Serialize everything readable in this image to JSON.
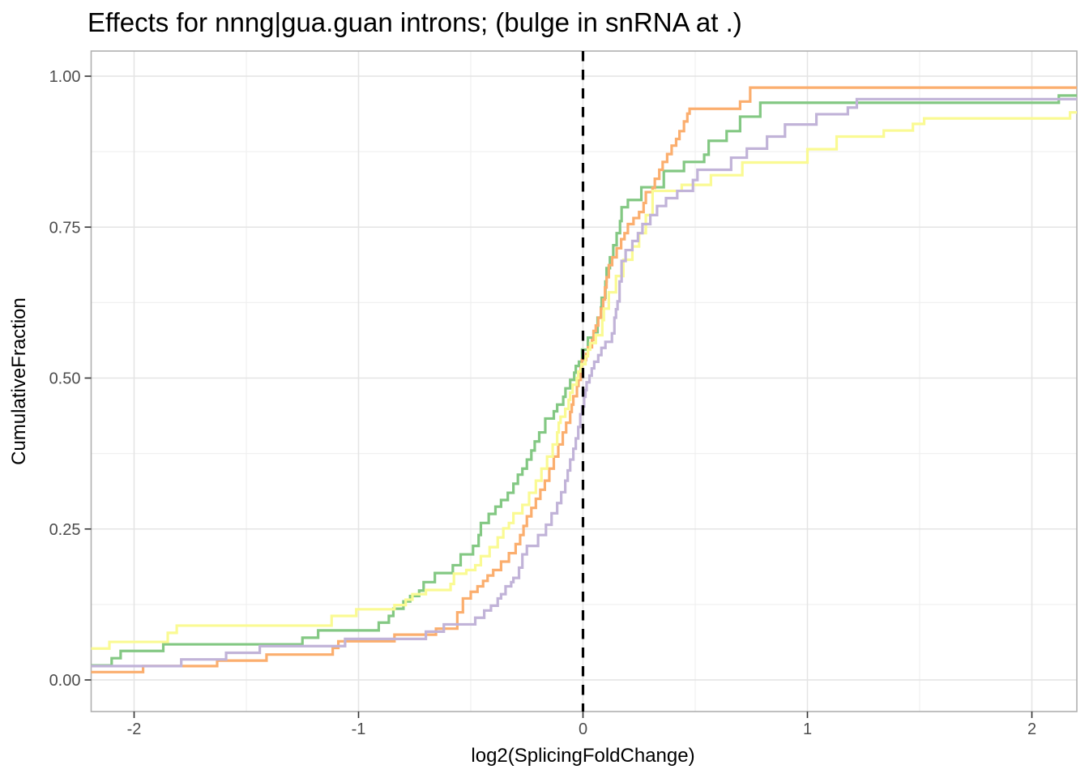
{
  "chart_data": {
    "type": "line",
    "subtype": "ecdf-step",
    "title": "Effects for nnng|gua.guan introns; (bulge in snRNA at .)",
    "xlabel": "log2(SplicingFoldChange)",
    "ylabel": "CumulativeFraction",
    "xlim": [
      -2.18,
      2.2
    ],
    "ylim": [
      -0.051,
      1.04
    ],
    "grid": true,
    "legend_position": "none",
    "x_ticks": {
      "values": [
        -2,
        -1,
        0,
        1,
        2
      ],
      "labels": [
        "-2",
        "-1",
        "0",
        "1",
        "2"
      ]
    },
    "y_ticks": {
      "values": [
        0,
        0.25,
        0.5,
        0.75,
        1
      ],
      "labels": [
        "0.00",
        "0.25",
        "0.50",
        "0.75",
        "1.00"
      ]
    },
    "x_minor_ticks": [
      -1.5,
      -0.5,
      0.5,
      1.5
    ],
    "y_minor_ticks": [
      0.125,
      0.375,
      0.625,
      0.875
    ],
    "vline": {
      "x": 0,
      "style": "dashed",
      "color": "#000000"
    },
    "colors": {
      "panel_background": "#ffffff",
      "panel_border": "#b0b0b0",
      "grid_major": "#e4e4e4",
      "grid_minor": "#f0f0f0",
      "tick_mark": "#333333",
      "tick_label": "#4d4d4d",
      "title": "#000000"
    },
    "series": [
      {
        "name": "green",
        "color": "#83c883",
        "points": [
          [
            -2.18,
            0.024
          ],
          [
            -2.1,
            0.036
          ],
          [
            -2.06,
            0.048
          ],
          [
            -1.87,
            0.059
          ],
          [
            -1.25,
            0.07
          ],
          [
            -1.18,
            0.082
          ],
          [
            -0.91,
            0.095
          ],
          [
            -0.865,
            0.106
          ],
          [
            -0.845,
            0.118
          ],
          [
            -0.8,
            0.13
          ],
          [
            -0.77,
            0.139
          ],
          [
            -0.73,
            0.148
          ],
          [
            -0.71,
            0.162
          ],
          [
            -0.66,
            0.177
          ],
          [
            -0.58,
            0.19
          ],
          [
            -0.545,
            0.208
          ],
          [
            -0.49,
            0.222
          ],
          [
            -0.465,
            0.24
          ],
          [
            -0.455,
            0.26
          ],
          [
            -0.42,
            0.275
          ],
          [
            -0.39,
            0.287
          ],
          [
            -0.365,
            0.298
          ],
          [
            -0.335,
            0.31
          ],
          [
            -0.31,
            0.325
          ],
          [
            -0.29,
            0.34
          ],
          [
            -0.27,
            0.35
          ],
          [
            -0.25,
            0.365
          ],
          [
            -0.23,
            0.38
          ],
          [
            -0.215,
            0.395
          ],
          [
            -0.195,
            0.41
          ],
          [
            -0.168,
            0.433
          ],
          [
            -0.13,
            0.445
          ],
          [
            -0.115,
            0.456
          ],
          [
            -0.088,
            0.469
          ],
          [
            -0.078,
            0.483
          ],
          [
            -0.057,
            0.497
          ],
          [
            -0.039,
            0.509
          ],
          [
            -0.032,
            0.52
          ],
          [
            -0.018,
            0.527
          ],
          [
            -0.004,
            0.547
          ],
          [
            0.022,
            0.567
          ],
          [
            0.047,
            0.576
          ],
          [
            0.065,
            0.6
          ],
          [
            0.08,
            0.617
          ],
          [
            0.083,
            0.633
          ],
          [
            0.1,
            0.66
          ],
          [
            0.105,
            0.682
          ],
          [
            0.12,
            0.7
          ],
          [
            0.135,
            0.72
          ],
          [
            0.15,
            0.74
          ],
          [
            0.165,
            0.76
          ],
          [
            0.172,
            0.783
          ],
          [
            0.2,
            0.795
          ],
          [
            0.26,
            0.816
          ],
          [
            0.36,
            0.843
          ],
          [
            0.45,
            0.858
          ],
          [
            0.54,
            0.87
          ],
          [
            0.56,
            0.893
          ],
          [
            0.64,
            0.909
          ],
          [
            0.7,
            0.933
          ],
          [
            0.79,
            0.956
          ],
          [
            2.12,
            0.968
          ]
        ]
      },
      {
        "name": "orange",
        "color": "#fbae6e",
        "points": [
          [
            -2.18,
            0.013
          ],
          [
            -1.96,
            0.023
          ],
          [
            -1.63,
            0.032
          ],
          [
            -1.41,
            0.042
          ],
          [
            -1.115,
            0.053
          ],
          [
            -1.09,
            0.064
          ],
          [
            -0.84,
            0.075
          ],
          [
            -0.655,
            0.085
          ],
          [
            -0.56,
            0.112
          ],
          [
            -0.535,
            0.135
          ],
          [
            -0.5,
            0.146
          ],
          [
            -0.47,
            0.155
          ],
          [
            -0.445,
            0.164
          ],
          [
            -0.425,
            0.173
          ],
          [
            -0.4,
            0.182
          ],
          [
            -0.365,
            0.196
          ],
          [
            -0.33,
            0.21
          ],
          [
            -0.3,
            0.225
          ],
          [
            -0.28,
            0.24
          ],
          [
            -0.265,
            0.255
          ],
          [
            -0.25,
            0.271
          ],
          [
            -0.23,
            0.285
          ],
          [
            -0.21,
            0.3
          ],
          [
            -0.19,
            0.315
          ],
          [
            -0.17,
            0.33
          ],
          [
            -0.15,
            0.35
          ],
          [
            -0.13,
            0.37
          ],
          [
            -0.11,
            0.39
          ],
          [
            -0.09,
            0.41
          ],
          [
            -0.075,
            0.426
          ],
          [
            -0.057,
            0.444
          ],
          [
            -0.05,
            0.456
          ],
          [
            -0.043,
            0.47
          ],
          [
            -0.027,
            0.487
          ],
          [
            -0.02,
            0.497
          ],
          [
            -0.01,
            0.517
          ],
          [
            -0.005,
            0.53
          ],
          [
            0.014,
            0.54
          ],
          [
            0.022,
            0.551
          ],
          [
            0.04,
            0.563
          ],
          [
            0.047,
            0.578
          ],
          [
            0.057,
            0.587
          ],
          [
            0.068,
            0.6
          ],
          [
            0.08,
            0.615
          ],
          [
            0.09,
            0.63
          ],
          [
            0.098,
            0.65
          ],
          [
            0.105,
            0.667
          ],
          [
            0.115,
            0.687
          ],
          [
            0.13,
            0.7
          ],
          [
            0.15,
            0.715
          ],
          [
            0.17,
            0.73
          ],
          [
            0.185,
            0.74
          ],
          [
            0.2,
            0.755
          ],
          [
            0.225,
            0.765
          ],
          [
            0.25,
            0.775
          ],
          [
            0.27,
            0.79
          ],
          [
            0.28,
            0.808
          ],
          [
            0.31,
            0.815
          ],
          [
            0.32,
            0.83
          ],
          [
            0.34,
            0.845
          ],
          [
            0.355,
            0.858
          ],
          [
            0.375,
            0.871
          ],
          [
            0.395,
            0.885
          ],
          [
            0.415,
            0.896
          ],
          [
            0.43,
            0.909
          ],
          [
            0.45,
            0.925
          ],
          [
            0.465,
            0.938
          ],
          [
            0.475,
            0.946
          ],
          [
            0.7,
            0.958
          ],
          [
            0.745,
            0.981
          ]
        ]
      },
      {
        "name": "yellow",
        "color": "#fafa93",
        "points": [
          [
            -2.18,
            0.052
          ],
          [
            -2.11,
            0.063
          ],
          [
            -1.85,
            0.078
          ],
          [
            -1.81,
            0.09
          ],
          [
            -1.12,
            0.106
          ],
          [
            -1.01,
            0.117
          ],
          [
            -0.84,
            0.124
          ],
          [
            -0.79,
            0.133
          ],
          [
            -0.76,
            0.142
          ],
          [
            -0.7,
            0.149
          ],
          [
            -0.59,
            0.159
          ],
          [
            -0.575,
            0.176
          ],
          [
            -0.52,
            0.182
          ],
          [
            -0.48,
            0.19
          ],
          [
            -0.455,
            0.205
          ],
          [
            -0.416,
            0.22
          ],
          [
            -0.38,
            0.236
          ],
          [
            -0.355,
            0.251
          ],
          [
            -0.33,
            0.26
          ],
          [
            -0.31,
            0.276
          ],
          [
            -0.27,
            0.29
          ],
          [
            -0.24,
            0.31
          ],
          [
            -0.21,
            0.33
          ],
          [
            -0.185,
            0.35
          ],
          [
            -0.16,
            0.37
          ],
          [
            -0.135,
            0.39
          ],
          [
            -0.115,
            0.41
          ],
          [
            -0.108,
            0.426
          ],
          [
            -0.1,
            0.436
          ],
          [
            -0.079,
            0.449
          ],
          [
            -0.064,
            0.464
          ],
          [
            -0.057,
            0.476
          ],
          [
            -0.046,
            0.489
          ],
          [
            -0.028,
            0.5
          ],
          [
            -0.021,
            0.511
          ],
          [
            -0.007,
            0.523
          ],
          [
            0.011,
            0.536
          ],
          [
            0.022,
            0.547
          ],
          [
            0.032,
            0.558
          ],
          [
            0.057,
            0.571
          ],
          [
            0.086,
            0.596
          ],
          [
            0.093,
            0.615
          ],
          [
            0.115,
            0.642
          ],
          [
            0.147,
            0.669
          ],
          [
            0.18,
            0.696
          ],
          [
            0.22,
            0.718
          ],
          [
            0.25,
            0.74
          ],
          [
            0.28,
            0.77
          ],
          [
            0.31,
            0.81
          ],
          [
            0.44,
            0.82
          ],
          [
            0.57,
            0.836
          ],
          [
            0.71,
            0.857
          ],
          [
            1.0,
            0.879
          ],
          [
            1.13,
            0.9
          ],
          [
            1.34,
            0.91
          ],
          [
            1.47,
            0.921
          ],
          [
            1.52,
            0.93
          ],
          [
            2.17,
            0.94
          ]
        ]
      },
      {
        "name": "purple",
        "color": "#c1b3d8",
        "points": [
          [
            -2.18,
            0.023
          ],
          [
            -1.79,
            0.034
          ],
          [
            -1.59,
            0.045
          ],
          [
            -1.44,
            0.056
          ],
          [
            -1.06,
            0.068
          ],
          [
            -0.7,
            0.08
          ],
          [
            -0.62,
            0.092
          ],
          [
            -0.48,
            0.103
          ],
          [
            -0.44,
            0.115
          ],
          [
            -0.41,
            0.123
          ],
          [
            -0.38,
            0.135
          ],
          [
            -0.365,
            0.142
          ],
          [
            -0.345,
            0.155
          ],
          [
            -0.32,
            0.162
          ],
          [
            -0.31,
            0.169
          ],
          [
            -0.285,
            0.186
          ],
          [
            -0.27,
            0.208
          ],
          [
            -0.25,
            0.222
          ],
          [
            -0.2,
            0.24
          ],
          [
            -0.165,
            0.257
          ],
          [
            -0.14,
            0.276
          ],
          [
            -0.115,
            0.293
          ],
          [
            -0.097,
            0.311
          ],
          [
            -0.079,
            0.33
          ],
          [
            -0.068,
            0.347
          ],
          [
            -0.057,
            0.365
          ],
          [
            -0.043,
            0.383
          ],
          [
            -0.032,
            0.4
          ],
          [
            -0.021,
            0.419
          ],
          [
            -0.012,
            0.44
          ],
          [
            -0.004,
            0.453
          ],
          [
            0.005,
            0.469
          ],
          [
            0.011,
            0.48
          ],
          [
            0.016,
            0.493
          ],
          [
            0.029,
            0.504
          ],
          [
            0.039,
            0.516
          ],
          [
            0.05,
            0.527
          ],
          [
            0.068,
            0.538
          ],
          [
            0.082,
            0.55
          ],
          [
            0.1,
            0.56
          ],
          [
            0.129,
            0.574
          ],
          [
            0.14,
            0.6
          ],
          [
            0.147,
            0.614
          ],
          [
            0.154,
            0.627
          ],
          [
            0.163,
            0.66
          ],
          [
            0.172,
            0.694
          ],
          [
            0.19,
            0.712
          ],
          [
            0.22,
            0.727
          ],
          [
            0.245,
            0.74
          ],
          [
            0.265,
            0.755
          ],
          [
            0.3,
            0.77
          ],
          [
            0.33,
            0.785
          ],
          [
            0.37,
            0.798
          ],
          [
            0.42,
            0.81
          ],
          [
            0.49,
            0.828
          ],
          [
            0.51,
            0.845
          ],
          [
            0.66,
            0.865
          ],
          [
            0.73,
            0.88
          ],
          [
            0.82,
            0.9
          ],
          [
            0.9,
            0.92
          ],
          [
            1.04,
            0.937
          ],
          [
            1.18,
            0.948
          ],
          [
            1.22,
            0.962
          ]
        ]
      }
    ]
  }
}
